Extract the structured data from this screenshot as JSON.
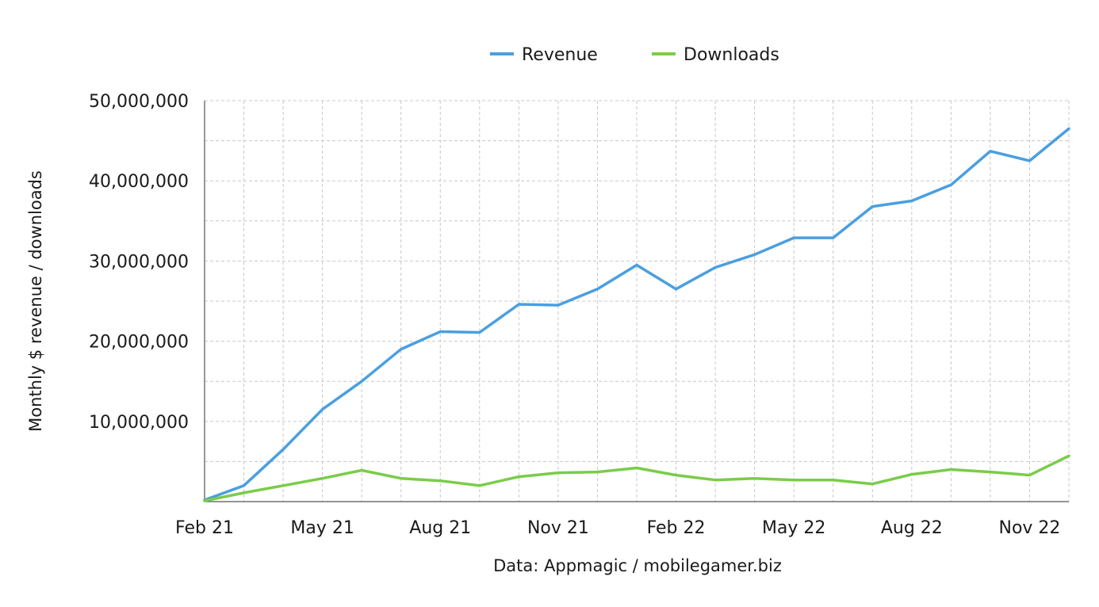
{
  "chart_data": {
    "type": "line",
    "x": [
      "Feb 21",
      "Mar 21",
      "Apr 21",
      "May 21",
      "Jun 21",
      "Jul 21",
      "Aug 21",
      "Sep 21",
      "Oct 21",
      "Nov 21",
      "Dec 21",
      "Jan 22",
      "Feb 22",
      "Mar 22",
      "Apr 22",
      "May 22",
      "Jun 22",
      "Jul 22",
      "Aug 22",
      "Sep 22",
      "Oct 22",
      "Nov 22",
      "Dec 22"
    ],
    "x_tick_labels": [
      "Feb 21",
      "May 21",
      "Aug 21",
      "Nov 21",
      "Feb 22",
      "May 22",
      "Aug 22",
      "Nov 22"
    ],
    "x_tick_indices": [
      0,
      3,
      6,
      9,
      12,
      15,
      18,
      21
    ],
    "series": [
      {
        "name": "Revenue",
        "color": "#4a9fe0",
        "values": [
          200000,
          2000000,
          6500000,
          11500000,
          15000000,
          19000000,
          21200000,
          21100000,
          24600000,
          24500000,
          26500000,
          29500000,
          26500000,
          29200000,
          30800000,
          32900000,
          32900000,
          36800000,
          37500000,
          39500000,
          43700000,
          42500000,
          46500000
        ]
      },
      {
        "name": "Downloads",
        "color": "#7acc4a",
        "values": [
          100000,
          1100000,
          2000000,
          2900000,
          3900000,
          2900000,
          2600000,
          2000000,
          3100000,
          3600000,
          3700000,
          4200000,
          3300000,
          2700000,
          2900000,
          2700000,
          2700000,
          2200000,
          3400000,
          4000000,
          3700000,
          3300000,
          5700000
        ]
      }
    ],
    "y_ticks": [
      "10,000,000",
      "20,000,000",
      "30,000,000",
      "40,000,000",
      "50,000,000"
    ],
    "y_tick_values": [
      10000000,
      20000000,
      30000000,
      40000000,
      50000000
    ],
    "ylim": [
      0,
      50000000
    ],
    "ylabel": "Monthly $ revenue / downloads",
    "xlabel": "",
    "grid": true,
    "legend_position": "top-center",
    "source": "Data: Appmagic / mobilegamer.biz"
  }
}
